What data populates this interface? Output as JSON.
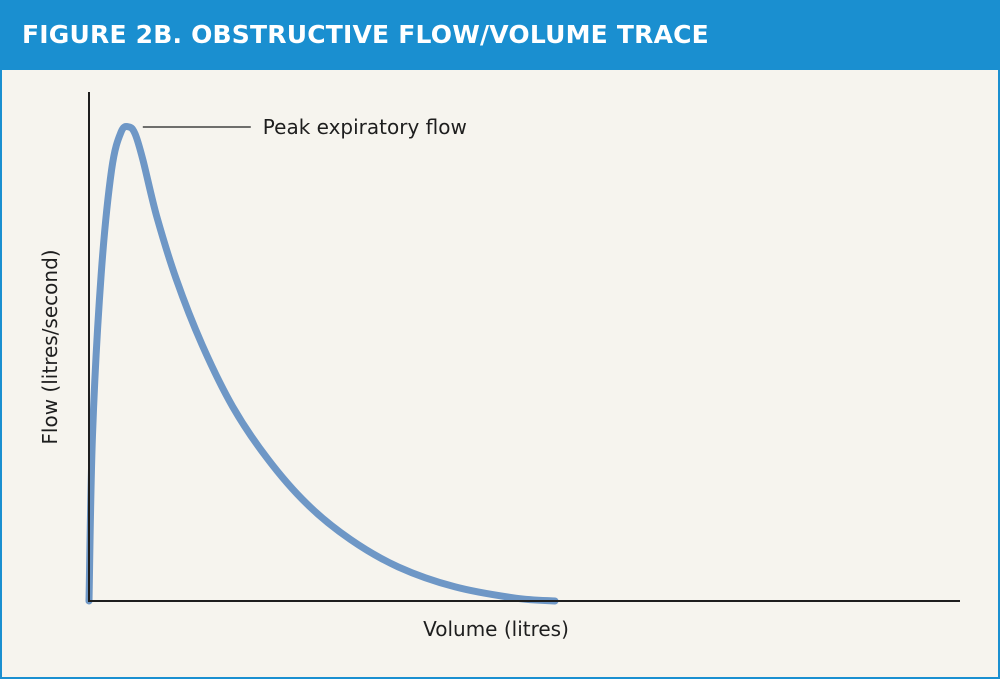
{
  "figure": {
    "title": "FIGURE 2B. OBSTRUCTIVE FLOW/VOLUME TRACE"
  },
  "colors": {
    "header": "#1a8fd0",
    "background": "#f6f4ee",
    "curve": "#6e97c6",
    "axis": "#1e1e1e"
  },
  "chart_data": {
    "type": "line",
    "title": "FIGURE 2B. OBSTRUCTIVE FLOW/VOLUME TRACE",
    "xlabel": "Volume (litres)",
    "ylabel": "Flow (litres/second)",
    "ticks": false,
    "grid": false,
    "legend": "none",
    "xlim": [
      0,
      10
    ],
    "ylim": [
      0,
      10
    ],
    "series": [
      {
        "x": [
          0.0,
          0.04,
          0.14,
          0.26,
          0.37,
          0.46,
          0.53,
          0.62,
          0.78,
          1.0,
          1.3,
          1.65,
          2.05,
          2.5,
          3.0,
          3.55,
          4.2,
          4.9,
          5.35
        ],
        "y": [
          0.0,
          3.5,
          6.9,
          9.1,
          9.9,
          10.0,
          9.85,
          9.3,
          8.1,
          6.8,
          5.4,
          4.1,
          3.0,
          2.05,
          1.3,
          0.72,
          0.3,
          0.06,
          0.0
        ]
      }
    ],
    "annotations": [
      {
        "text": "Peak expiratory flow",
        "x": 0.48,
        "y": 10.0
      }
    ]
  }
}
